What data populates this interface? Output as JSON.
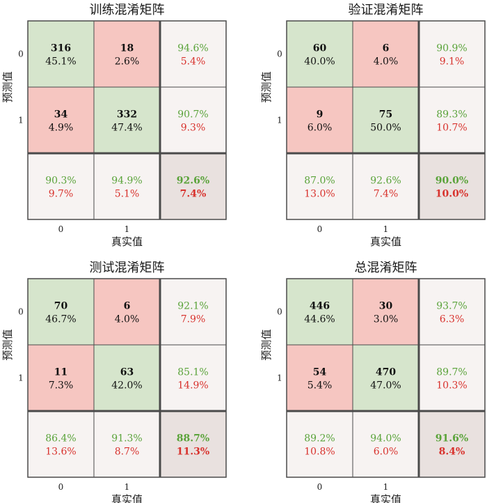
{
  "colors": {
    "correct_cell": "#d6e5cc",
    "wrong_cell": "#f6c6c1",
    "summary_cell": "#f7f3f2",
    "total_cell": "#e9e1df",
    "accuracy_text": "#5aa33a",
    "error_text": "#d8322d",
    "grid_line": "#4a4a4a"
  },
  "chart_data": [
    {
      "type": "heatmap",
      "title": "训练混淆矩阵",
      "xlabel": "真实值",
      "ylabel": "预测值",
      "x_ticks": [
        "0",
        "1"
      ],
      "y_ticks": [
        "0",
        "1"
      ],
      "matrix": [
        [
          {
            "count": "316",
            "pct": "45.1%"
          },
          {
            "count": "18",
            "pct": "2.6%"
          }
        ],
        [
          {
            "count": "34",
            "pct": "4.9%"
          },
          {
            "count": "332",
            "pct": "47.4%"
          }
        ]
      ],
      "row_summary": [
        [
          "94.6%",
          "5.4%"
        ],
        [
          "90.7%",
          "9.3%"
        ]
      ],
      "col_summary": [
        [
          "90.3%",
          "9.7%"
        ],
        [
          "94.9%",
          "5.1%"
        ]
      ],
      "total": [
        "92.6%",
        "7.4%"
      ]
    },
    {
      "type": "heatmap",
      "title": "验证混淆矩阵",
      "xlabel": "真实值",
      "ylabel": "预测值",
      "x_ticks": [
        "0",
        "1"
      ],
      "y_ticks": [
        "0",
        "1"
      ],
      "matrix": [
        [
          {
            "count": "60",
            "pct": "40.0%"
          },
          {
            "count": "6",
            "pct": "4.0%"
          }
        ],
        [
          {
            "count": "9",
            "pct": "6.0%"
          },
          {
            "count": "75",
            "pct": "50.0%"
          }
        ]
      ],
      "row_summary": [
        [
          "90.9%",
          "9.1%"
        ],
        [
          "89.3%",
          "10.7%"
        ]
      ],
      "col_summary": [
        [
          "87.0%",
          "13.0%"
        ],
        [
          "92.6%",
          "7.4%"
        ]
      ],
      "total": [
        "90.0%",
        "10.0%"
      ]
    },
    {
      "type": "heatmap",
      "title": "测试混淆矩阵",
      "xlabel": "真实值",
      "ylabel": "预测值",
      "x_ticks": [
        "0",
        "1"
      ],
      "y_ticks": [
        "0",
        "1"
      ],
      "matrix": [
        [
          {
            "count": "70",
            "pct": "46.7%"
          },
          {
            "count": "6",
            "pct": "4.0%"
          }
        ],
        [
          {
            "count": "11",
            "pct": "7.3%"
          },
          {
            "count": "63",
            "pct": "42.0%"
          }
        ]
      ],
      "row_summary": [
        [
          "92.1%",
          "7.9%"
        ],
        [
          "85.1%",
          "14.9%"
        ]
      ],
      "col_summary": [
        [
          "86.4%",
          "13.6%"
        ],
        [
          "91.3%",
          "8.7%"
        ]
      ],
      "total": [
        "88.7%",
        "11.3%"
      ]
    },
    {
      "type": "heatmap",
      "title": "总混淆矩阵",
      "xlabel": "真实值",
      "ylabel": "预测值",
      "x_ticks": [
        "0",
        "1"
      ],
      "y_ticks": [
        "0",
        "1"
      ],
      "matrix": [
        [
          {
            "count": "446",
            "pct": "44.6%"
          },
          {
            "count": "30",
            "pct": "3.0%"
          }
        ],
        [
          {
            "count": "54",
            "pct": "5.4%"
          },
          {
            "count": "470",
            "pct": "47.0%"
          }
        ]
      ],
      "row_summary": [
        [
          "93.7%",
          "6.3%"
        ],
        [
          "89.7%",
          "10.3%"
        ]
      ],
      "col_summary": [
        [
          "89.2%",
          "10.8%"
        ],
        [
          "94.0%",
          "6.0%"
        ]
      ],
      "total": [
        "91.6%",
        "8.4%"
      ]
    }
  ]
}
